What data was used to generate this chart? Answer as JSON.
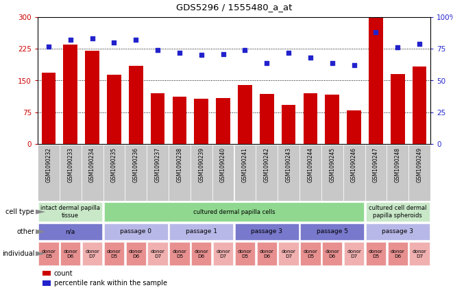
{
  "title": "GDS5296 / 1555480_a_at",
  "samples": [
    "GSM1090232",
    "GSM1090233",
    "GSM1090234",
    "GSM1090235",
    "GSM1090236",
    "GSM1090237",
    "GSM1090238",
    "GSM1090239",
    "GSM1090240",
    "GSM1090241",
    "GSM1090242",
    "GSM1090243",
    "GSM1090244",
    "GSM1090245",
    "GSM1090246",
    "GSM1090247",
    "GSM1090248",
    "GSM1090249"
  ],
  "counts": [
    168,
    235,
    220,
    163,
    185,
    120,
    112,
    107,
    108,
    140,
    118,
    92,
    120,
    117,
    80,
    300,
    165,
    183
  ],
  "percentiles": [
    77,
    82,
    83,
    80,
    82,
    74,
    72,
    70,
    71,
    74,
    64,
    72,
    68,
    64,
    62,
    88,
    76,
    79
  ],
  "ylim_left": [
    0,
    300
  ],
  "ylim_right": [
    0,
    100
  ],
  "yticks_left": [
    0,
    75,
    150,
    225,
    300
  ],
  "yticks_right": [
    0,
    25,
    50,
    75,
    100
  ],
  "bar_color": "#cc0000",
  "dot_color": "#2222cc",
  "cell_type_groups": [
    {
      "label": "intact dermal papilla\ntissue",
      "start": 0,
      "end": 3,
      "color": "#c8e8c8"
    },
    {
      "label": "cultured dermal papilla cells",
      "start": 3,
      "end": 15,
      "color": "#90d890"
    },
    {
      "label": "cultured cell dermal\npapilla spheroids",
      "start": 15,
      "end": 18,
      "color": "#c8e8c8"
    }
  ],
  "other_groups": [
    {
      "label": "n/a",
      "start": 0,
      "end": 3,
      "color": "#7878cc"
    },
    {
      "label": "passage 0",
      "start": 3,
      "end": 6,
      "color": "#b8b8e8"
    },
    {
      "label": "passage 1",
      "start": 6,
      "end": 9,
      "color": "#b8b8e8"
    },
    {
      "label": "passage 3",
      "start": 9,
      "end": 12,
      "color": "#7878cc"
    },
    {
      "label": "passage 5",
      "start": 12,
      "end": 15,
      "color": "#7878cc"
    },
    {
      "label": "passage 3",
      "start": 15,
      "end": 18,
      "color": "#b8b8e8"
    }
  ],
  "individual_groups": [
    {
      "label": "donor\nD5",
      "start": 0,
      "end": 1,
      "color": "#e89090"
    },
    {
      "label": "donor\nD6",
      "start": 1,
      "end": 2,
      "color": "#e89090"
    },
    {
      "label": "donor\nD7",
      "start": 2,
      "end": 3,
      "color": "#f0b0b0"
    },
    {
      "label": "donor\nD5",
      "start": 3,
      "end": 4,
      "color": "#e89090"
    },
    {
      "label": "donor\nD6",
      "start": 4,
      "end": 5,
      "color": "#e89090"
    },
    {
      "label": "donor\nD7",
      "start": 5,
      "end": 6,
      "color": "#f0b0b0"
    },
    {
      "label": "donor\nD5",
      "start": 6,
      "end": 7,
      "color": "#e89090"
    },
    {
      "label": "donor\nD6",
      "start": 7,
      "end": 8,
      "color": "#e89090"
    },
    {
      "label": "donor\nD7",
      "start": 8,
      "end": 9,
      "color": "#f0b0b0"
    },
    {
      "label": "donor\nD5",
      "start": 9,
      "end": 10,
      "color": "#e89090"
    },
    {
      "label": "donor\nD6",
      "start": 10,
      "end": 11,
      "color": "#e89090"
    },
    {
      "label": "donor\nD7",
      "start": 11,
      "end": 12,
      "color": "#f0b0b0"
    },
    {
      "label": "donor\nD5",
      "start": 12,
      "end": 13,
      "color": "#e89090"
    },
    {
      "label": "donor\nD6",
      "start": 13,
      "end": 14,
      "color": "#e89090"
    },
    {
      "label": "donor\nD7",
      "start": 14,
      "end": 15,
      "color": "#f0b0b0"
    },
    {
      "label": "donor\nD5",
      "start": 15,
      "end": 16,
      "color": "#e89090"
    },
    {
      "label": "donor\nD6",
      "start": 16,
      "end": 17,
      "color": "#e89090"
    },
    {
      "label": "donor\nD7",
      "start": 17,
      "end": 18,
      "color": "#f0b0b0"
    }
  ],
  "row_labels": [
    "cell type",
    "other",
    "individual"
  ],
  "legend_bar_label": "count",
  "legend_dot_label": "percentile rank within the sample",
  "bg_color": "#ffffff",
  "tick_color_left": "#cc0000",
  "tick_color_right": "#2222cc",
  "xtick_bg": "#c8c8c8",
  "arrow_color": "#888888"
}
